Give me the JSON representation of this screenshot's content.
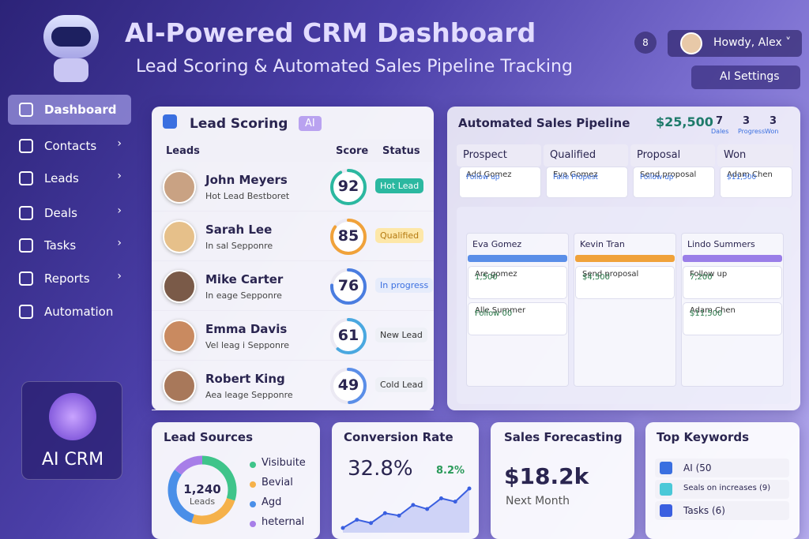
{
  "header": {
    "title": "AI-Powered CRM Dashboard",
    "subtitle": "Lead Scoring & Automated Sales Pipeline Tracking",
    "notifications": "8",
    "user": "Howdy, Alex",
    "settings": "AI Settings"
  },
  "sidebar": {
    "items": [
      "Dashboard",
      "Contacts",
      "Leads",
      "Deals",
      "Tasks",
      "Reports",
      "Automation"
    ],
    "logo": "AI CRM"
  },
  "lead_scoring": {
    "title": "Lead Scoring",
    "badge": "AI",
    "columns": [
      "Leads",
      "Score",
      "Status"
    ],
    "rows": [
      {
        "name": "John Meyers",
        "note": "Hot Lead Bestboret",
        "score": 92,
        "status": "Hot Lead",
        "color": "#2bb8a0"
      },
      {
        "name": "Sarah Lee",
        "note": "In sal Sepponre",
        "score": 85,
        "status": "Qualified",
        "color": "#f0a23a"
      },
      {
        "name": "Mike Carter",
        "note": "In eage Sepponre",
        "score": 76,
        "status": "In progress",
        "color": "#4a7de0"
      },
      {
        "name": "Emma Davis",
        "note": "Vel leag i Sepponre",
        "score": 61,
        "status": "New Lead",
        "color": "#4aa8e0"
      },
      {
        "name": "Robert King",
        "note": "Aea leage Sepponre",
        "score": 49,
        "status": "Cold Lead",
        "color": "#5a8ee8"
      }
    ]
  },
  "pipeline": {
    "title": "Automated Sales Pipeline",
    "total": "$25,500",
    "stats": [
      {
        "value": "7",
        "label": "Dales"
      },
      {
        "value": "3",
        "label": "Progress"
      },
      {
        "value": "3",
        "label": "Won"
      }
    ],
    "stages": [
      {
        "name": "Prospect",
        "card": "Add Gomez",
        "detail": "Follow up"
      },
      {
        "name": "Qualified",
        "card": "Eva Gomez",
        "detail": "Faile Propest"
      },
      {
        "name": "Proposal",
        "card": "Send proposal",
        "detail": "Follow up"
      },
      {
        "name": "Won",
        "card": "Adam Chen",
        "detail": "$11,500"
      }
    ],
    "board": [
      {
        "name": "Eva Gomez",
        "cards": [
          {
            "title": "Are gomez",
            "detail": "1,500"
          },
          {
            "title": "Alle Summer",
            "detail": "Follow 00"
          }
        ]
      },
      {
        "name": "Kevin Tran",
        "cards": [
          {
            "title": "Send proposal",
            "detail": "$4,500"
          }
        ]
      },
      {
        "name": "Lindo Summers",
        "cards": [
          {
            "title": "Follow up",
            "detail": "7,200"
          },
          {
            "title": "Adam Chen",
            "detail": "$11,500"
          }
        ]
      }
    ]
  },
  "lead_sources": {
    "title": "Lead Sources",
    "total": "1,240",
    "total_label": "Leads",
    "segments": [
      {
        "name": "Visibuite",
        "value": 30,
        "color": "#3fc48a"
      },
      {
        "name": "Bevial",
        "value": 25,
        "color": "#f5b14a"
      },
      {
        "name": "Agd",
        "value": 30,
        "color": "#4a8fe8"
      },
      {
        "name": "heternal",
        "value": 15,
        "color": "#a77ee8"
      }
    ]
  },
  "conversion_rate": {
    "title": "Conversion Rate",
    "value": "32.8%",
    "change": "8.2%",
    "trend": [
      10,
      20,
      16,
      28,
      25,
      38,
      33,
      46,
      42,
      58
    ]
  },
  "sales_forecasting": {
    "title": "Sales Forecasting",
    "value": "$18.2k",
    "label": "Next Month"
  },
  "top_keywords": {
    "title": "Top Keywords",
    "items": [
      "AI (50",
      "Seals on increases (9)",
      "Tasks (6)"
    ]
  }
}
